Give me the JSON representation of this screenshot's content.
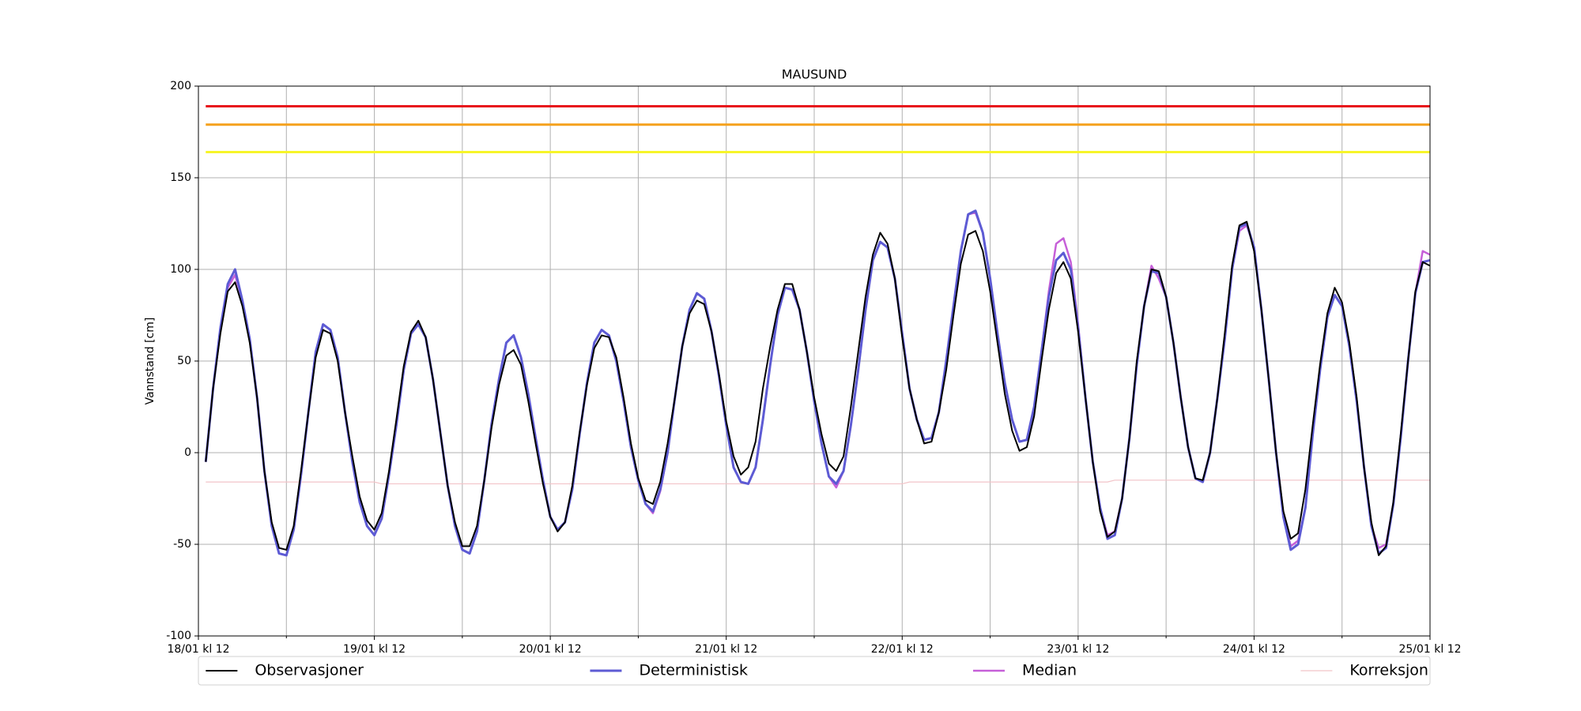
{
  "chart_data": {
    "type": "line",
    "title": "MAUSUND",
    "ylabel": "Vannstand [cm]",
    "xlim": [
      0,
      168
    ],
    "ylim": [
      -100,
      200
    ],
    "yticks": [
      -100,
      -50,
      0,
      50,
      100,
      150,
      200
    ],
    "xticks": [
      {
        "value": 0,
        "label": "18/01 kl 12"
      },
      {
        "value": 24,
        "label": "19/01 kl 12"
      },
      {
        "value": 48,
        "label": "20/01 kl 12"
      },
      {
        "value": 72,
        "label": "21/01 kl 12"
      },
      {
        "value": 96,
        "label": "22/01 kl 12"
      },
      {
        "value": 120,
        "label": "23/01 kl 12"
      },
      {
        "value": 144,
        "label": "24/01 kl 12"
      },
      {
        "value": 168,
        "label": "25/01 kl 12"
      }
    ],
    "xminor_ticks": [
      12,
      36,
      60,
      84,
      108,
      132,
      156
    ],
    "grid": true,
    "legend": "bottom",
    "thresholds": [
      {
        "value": 189,
        "color": "#e8141c"
      },
      {
        "value": 179,
        "color": "#f5a11c"
      },
      {
        "value": 164,
        "color": "#f7f52a"
      }
    ],
    "x": [
      1,
      2,
      3,
      4,
      5,
      6,
      7,
      8,
      9,
      10,
      11,
      12,
      13,
      14,
      15,
      16,
      17,
      18,
      19,
      20,
      21,
      22,
      23,
      24,
      25,
      26,
      27,
      28,
      29,
      30,
      31,
      32,
      33,
      34,
      35,
      36,
      37,
      38,
      39,
      40,
      41,
      42,
      43,
      44,
      45,
      46,
      47,
      48,
      49,
      50,
      51,
      52,
      53,
      54,
      55,
      56,
      57,
      58,
      59,
      60,
      61,
      62,
      63,
      64,
      65,
      66,
      67,
      68,
      69,
      70,
      71,
      72,
      73,
      74,
      75,
      76,
      77,
      78,
      79,
      80,
      81,
      82,
      83,
      84,
      85,
      86,
      87,
      88,
      89,
      90,
      91,
      92,
      93,
      94,
      95,
      96,
      97,
      98,
      99,
      100,
      101,
      102,
      103,
      104,
      105,
      106,
      107,
      108,
      109,
      110,
      111,
      112,
      113,
      114,
      115,
      116,
      117,
      118,
      119,
      120,
      121,
      122,
      123,
      124,
      125,
      126,
      127,
      128,
      129,
      130,
      131,
      132,
      133,
      134,
      135,
      136,
      137,
      138,
      139,
      140,
      141,
      142,
      143,
      144,
      145,
      146,
      147,
      148,
      149,
      150,
      151,
      152,
      153,
      154,
      155,
      156,
      157,
      158,
      159,
      160,
      161,
      162,
      163,
      164,
      165,
      166,
      167,
      168
    ],
    "series": [
      {
        "name": "Observasjoner",
        "color": "#000000",
        "width": 2,
        "values": [
          -5,
          35,
          65,
          88,
          93,
          80,
          60,
          30,
          -10,
          -38,
          -52,
          -53,
          -40,
          -10,
          22,
          52,
          67,
          65,
          50,
          22,
          -2,
          -24,
          -37,
          -42,
          -33,
          -10,
          18,
          47,
          66,
          72,
          63,
          40,
          11,
          -18,
          -38,
          -51,
          -51,
          -40,
          -15,
          14,
          37,
          53,
          56,
          48,
          28,
          5,
          -17,
          -35,
          -43,
          -38,
          -18,
          11,
          37,
          57,
          64,
          63,
          52,
          30,
          5,
          -14,
          -26,
          -28,
          -16,
          5,
          30,
          58,
          76,
          83,
          81,
          66,
          43,
          17,
          -2,
          -12,
          -8,
          6,
          35,
          58,
          78,
          92,
          92,
          78,
          55,
          30,
          10,
          -6,
          -10,
          -2,
          25,
          55,
          85,
          108,
          120,
          114,
          95,
          63,
          35,
          18,
          5,
          6,
          22,
          45,
          75,
          103,
          119,
          121,
          110,
          88,
          60,
          32,
          12,
          1,
          3,
          20,
          50,
          78,
          98,
          104,
          95,
          66,
          30,
          -5,
          -32,
          -46,
          -43,
          -25,
          8,
          50,
          80,
          100,
          99,
          85,
          60,
          30,
          3,
          -14,
          -15,
          0,
          30,
          65,
          102,
          124,
          126,
          110,
          78,
          40,
          0,
          -32,
          -47,
          -44,
          -20,
          15,
          48,
          76,
          90,
          82,
          60,
          30,
          -8,
          -38,
          -56,
          -51,
          -27,
          10,
          50,
          88,
          104,
          102
        ]
      },
      {
        "name": "Deterministisk",
        "color": "#5d5bd4",
        "width": 3,
        "values": [
          -5,
          35,
          68,
          92,
          100,
          83,
          62,
          30,
          -10,
          -40,
          -55,
          -56,
          -42,
          -12,
          22,
          55,
          70,
          67,
          52,
          22,
          -5,
          -27,
          -40,
          -45,
          -36,
          -12,
          15,
          45,
          65,
          70,
          63,
          40,
          11,
          -18,
          -40,
          -53,
          -55,
          -43,
          -15,
          16,
          40,
          60,
          64,
          52,
          32,
          8,
          -15,
          -35,
          -42,
          -38,
          -20,
          10,
          38,
          60,
          67,
          64,
          50,
          28,
          3,
          -15,
          -28,
          -32,
          -20,
          0,
          30,
          58,
          78,
          87,
          84,
          66,
          42,
          15,
          -8,
          -16,
          -17,
          -8,
          18,
          48,
          75,
          90,
          89,
          78,
          55,
          28,
          5,
          -13,
          -17,
          -10,
          15,
          45,
          78,
          105,
          115,
          112,
          95,
          65,
          35,
          18,
          7,
          8,
          22,
          50,
          80,
          110,
          130,
          132,
          120,
          95,
          65,
          38,
          18,
          6,
          7,
          25,
          55,
          85,
          105,
          109,
          100,
          68,
          30,
          -5,
          -30,
          -47,
          -45,
          -25,
          8,
          48,
          80,
          99,
          98,
          85,
          60,
          30,
          3,
          -14,
          -16,
          0,
          30,
          62,
          100,
          123,
          125,
          112,
          78,
          40,
          0,
          -35,
          -53,
          -50,
          -30,
          10,
          45,
          74,
          86,
          80,
          58,
          28,
          -8,
          -40,
          -55,
          -52,
          -28,
          8,
          50,
          87,
          104,
          105
        ]
      },
      {
        "name": "Median",
        "color": "#c660d8",
        "width": 2.5,
        "values": [
          -5,
          35,
          68,
          90,
          97,
          83,
          62,
          30,
          -10,
          -40,
          -55,
          -56,
          -42,
          -12,
          22,
          55,
          70,
          67,
          52,
          22,
          -5,
          -27,
          -40,
          -45,
          -36,
          -12,
          15,
          45,
          65,
          70,
          63,
          40,
          11,
          -18,
          -40,
          -53,
          -55,
          -43,
          -15,
          16,
          40,
          60,
          64,
          52,
          32,
          8,
          -15,
          -35,
          -42,
          -38,
          -20,
          10,
          38,
          60,
          67,
          64,
          50,
          28,
          3,
          -15,
          -28,
          -33,
          -21,
          0,
          30,
          58,
          78,
          87,
          84,
          66,
          42,
          15,
          -8,
          -16,
          -17,
          -8,
          18,
          48,
          75,
          90,
          89,
          78,
          55,
          28,
          5,
          -13,
          -19,
          -10,
          15,
          45,
          78,
          105,
          115,
          112,
          95,
          65,
          35,
          18,
          7,
          8,
          22,
          50,
          80,
          110,
          130,
          131,
          120,
          95,
          65,
          38,
          18,
          6,
          7,
          25,
          55,
          88,
          114,
          117,
          104,
          70,
          30,
          -5,
          -30,
          -45,
          -43,
          -25,
          8,
          48,
          80,
          102,
          95,
          85,
          60,
          30,
          3,
          -14,
          -16,
          0,
          30,
          62,
          100,
          121,
          124,
          112,
          78,
          40,
          0,
          -35,
          -51,
          -48,
          -30,
          10,
          45,
          74,
          86,
          80,
          58,
          28,
          -8,
          -40,
          -52,
          -50,
          -28,
          8,
          50,
          87,
          110,
          108
        ]
      },
      {
        "name": "Korreksjon",
        "color": "#f2c4c8",
        "width": 1.2,
        "values": [
          -16,
          -16,
          -16,
          -16,
          -16,
          -16,
          -16,
          -16,
          -16,
          -16,
          -16,
          -16,
          -16,
          -16,
          -16,
          -16,
          -16,
          -16,
          -16,
          -16,
          -16,
          -16,
          -16,
          -16,
          -17,
          -17,
          -17,
          -17,
          -17,
          -17,
          -17,
          -17,
          -17,
          -17,
          -17,
          -17,
          -17,
          -17,
          -17,
          -17,
          -17,
          -17,
          -17,
          -17,
          -17,
          -17,
          -17,
          -17,
          -17,
          -17,
          -17,
          -17,
          -17,
          -17,
          -17,
          -17,
          -17,
          -17,
          -17,
          -17,
          -17,
          -17,
          -17,
          -17,
          -17,
          -17,
          -17,
          -17,
          -17,
          -17,
          -17,
          -17,
          -17,
          -17,
          -17,
          -17,
          -17,
          -17,
          -17,
          -17,
          -17,
          -17,
          -17,
          -17,
          -17,
          -17,
          -17,
          -17,
          -17,
          -17,
          -17,
          -17,
          -17,
          -17,
          -17,
          -17,
          -16,
          -16,
          -16,
          -16,
          -16,
          -16,
          -16,
          -16,
          -16,
          -16,
          -16,
          -16,
          -16,
          -16,
          -16,
          -16,
          -16,
          -16,
          -16,
          -16,
          -16,
          -16,
          -16,
          -16,
          -16,
          -16,
          -16,
          -16,
          -15,
          -15,
          -15,
          -15,
          -15,
          -15,
          -15,
          -15,
          -15,
          -15,
          -15,
          -15,
          -15,
          -15,
          -15,
          -15,
          -15,
          -15,
          -15,
          -15,
          -15,
          -15,
          -15,
          -15,
          -15,
          -15,
          -15,
          -15,
          -15,
          -15,
          -15,
          -15,
          -15,
          -15,
          -15,
          -15,
          -15,
          -15,
          -15,
          -15,
          -15,
          -15,
          -15,
          -15
        ]
      }
    ]
  }
}
